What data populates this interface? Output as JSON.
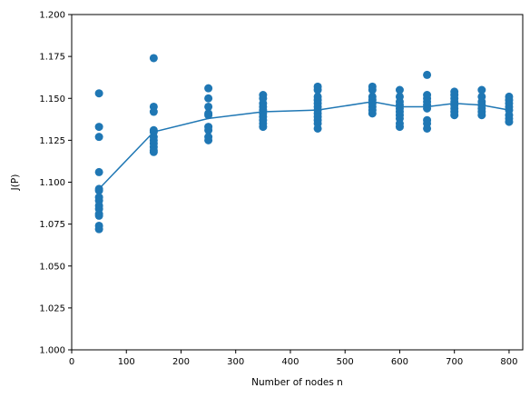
{
  "chart_data": {
    "type": "scatter",
    "title": "",
    "xlabel": "Number of nodes n",
    "ylabel": "J(P)",
    "xlim": [
      0,
      825
    ],
    "ylim": [
      1.0,
      1.2
    ],
    "xticks": [
      0,
      100,
      200,
      300,
      400,
      500,
      600,
      700,
      800
    ],
    "yticks": [
      1.0,
      1.025,
      1.05,
      1.075,
      1.1,
      1.125,
      1.15,
      1.175,
      1.2
    ],
    "xtick_labels": [
      "0",
      "100",
      "200",
      "300",
      "400",
      "500",
      "600",
      "700",
      "800"
    ],
    "ytick_labels": [
      "1.000",
      "1.025",
      "1.050",
      "1.075",
      "1.100",
      "1.125",
      "1.150",
      "1.175",
      "1.200"
    ],
    "grid": false,
    "color": "#1f77b4",
    "scatter": [
      {
        "x": 50,
        "y": [
          1.153,
          1.133,
          1.127,
          1.106,
          1.096,
          1.095,
          1.091,
          1.089,
          1.086,
          1.084,
          1.081,
          1.08,
          1.074,
          1.072
        ]
      },
      {
        "x": 150,
        "y": [
          1.174,
          1.145,
          1.142,
          1.131,
          1.13,
          1.127,
          1.125,
          1.123,
          1.121,
          1.119,
          1.118
        ]
      },
      {
        "x": 250,
        "y": [
          1.156,
          1.15,
          1.145,
          1.141,
          1.14,
          1.133,
          1.131,
          1.127,
          1.125
        ]
      },
      {
        "x": 350,
        "y": [
          1.152,
          1.15,
          1.147,
          1.145,
          1.143,
          1.141,
          1.139,
          1.137,
          1.135,
          1.133
        ]
      },
      {
        "x": 450,
        "y": [
          1.157,
          1.155,
          1.151,
          1.149,
          1.147,
          1.145,
          1.143,
          1.141,
          1.139,
          1.137,
          1.135,
          1.132
        ]
      },
      {
        "x": 550,
        "y": [
          1.157,
          1.155,
          1.151,
          1.149,
          1.147,
          1.145,
          1.143,
          1.141
        ]
      },
      {
        "x": 600,
        "y": [
          1.155,
          1.151,
          1.148,
          1.146,
          1.144,
          1.142,
          1.14,
          1.138,
          1.135,
          1.133
        ]
      },
      {
        "x": 650,
        "y": [
          1.164,
          1.152,
          1.15,
          1.148,
          1.146,
          1.144,
          1.137,
          1.135,
          1.132
        ]
      },
      {
        "x": 700,
        "y": [
          1.154,
          1.152,
          1.15,
          1.148,
          1.146,
          1.144,
          1.142,
          1.14
        ]
      },
      {
        "x": 750,
        "y": [
          1.155,
          1.151,
          1.148,
          1.146,
          1.144,
          1.142,
          1.14
        ]
      },
      {
        "x": 800,
        "y": [
          1.151,
          1.149,
          1.147,
          1.145,
          1.143,
          1.14,
          1.138,
          1.136
        ]
      }
    ],
    "mean_line": {
      "x": [
        50,
        150,
        250,
        350,
        450,
        550,
        600,
        650,
        700,
        750,
        800
      ],
      "y": [
        1.096,
        1.13,
        1.138,
        1.142,
        1.143,
        1.148,
        1.145,
        1.145,
        1.147,
        1.146,
        1.143
      ]
    }
  }
}
